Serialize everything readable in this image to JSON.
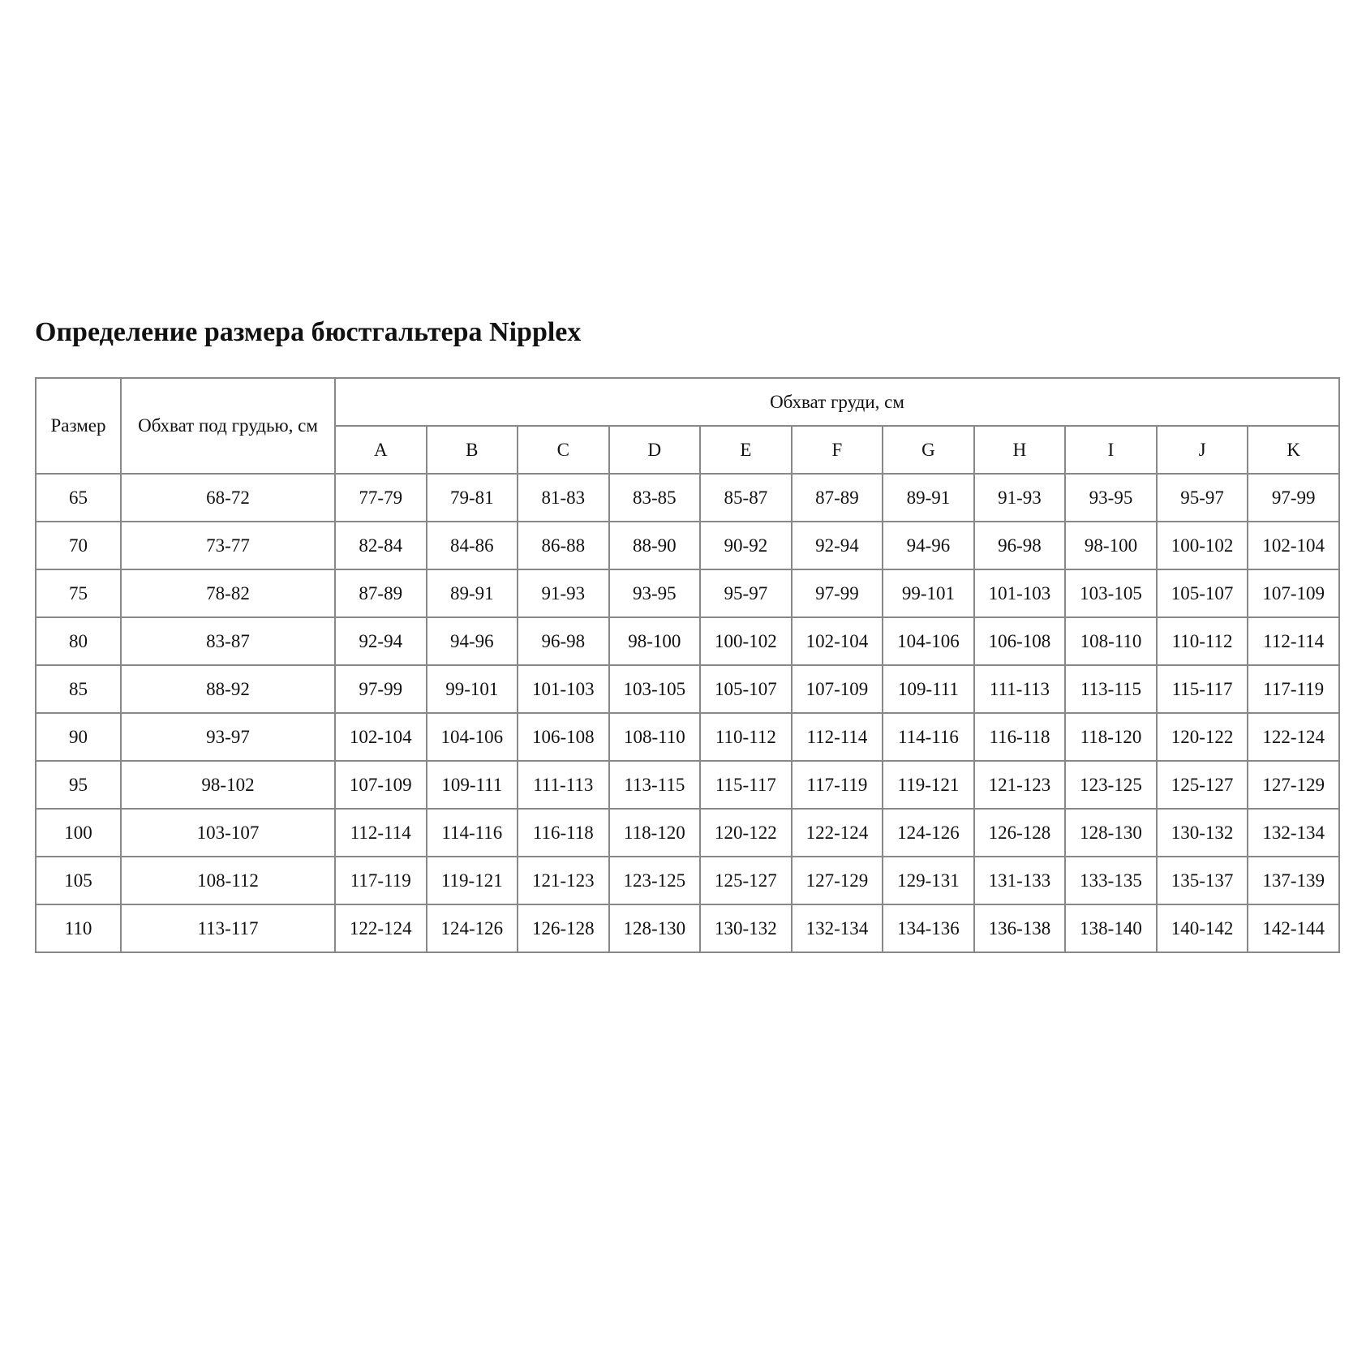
{
  "title": "Определение размера бюстгальтера Nipplex",
  "table": {
    "size_header": "Размер",
    "underbust_header": "Обхват под грудью, см",
    "bust_header": "Обхват груди, см",
    "cups": [
      "A",
      "B",
      "C",
      "D",
      "E",
      "F",
      "G",
      "H",
      "I",
      "J",
      "K"
    ],
    "rows": [
      {
        "size": "65",
        "underbust": "68-72",
        "bust": [
          "77-79",
          "79-81",
          "81-83",
          "83-85",
          "85-87",
          "87-89",
          "89-91",
          "91-93",
          "93-95",
          "95-97",
          "97-99"
        ]
      },
      {
        "size": "70",
        "underbust": "73-77",
        "bust": [
          "82-84",
          "84-86",
          "86-88",
          "88-90",
          "90-92",
          "92-94",
          "94-96",
          "96-98",
          "98-100",
          "100-102",
          "102-104"
        ]
      },
      {
        "size": "75",
        "underbust": "78-82",
        "bust": [
          "87-89",
          "89-91",
          "91-93",
          "93-95",
          "95-97",
          "97-99",
          "99-101",
          "101-103",
          "103-105",
          "105-107",
          "107-109"
        ]
      },
      {
        "size": "80",
        "underbust": "83-87",
        "bust": [
          "92-94",
          "94-96",
          "96-98",
          "98-100",
          "100-102",
          "102-104",
          "104-106",
          "106-108",
          "108-110",
          "110-112",
          "112-114"
        ]
      },
      {
        "size": "85",
        "underbust": "88-92",
        "bust": [
          "97-99",
          "99-101",
          "101-103",
          "103-105",
          "105-107",
          "107-109",
          "109-111",
          "111-113",
          "113-115",
          "115-117",
          "117-119"
        ]
      },
      {
        "size": "90",
        "underbust": "93-97",
        "bust": [
          "102-104",
          "104-106",
          "106-108",
          "108-110",
          "110-112",
          "112-114",
          "114-116",
          "116-118",
          "118-120",
          "120-122",
          "122-124"
        ]
      },
      {
        "size": "95",
        "underbust": "98-102",
        "bust": [
          "107-109",
          "109-111",
          "111-113",
          "113-115",
          "115-117",
          "117-119",
          "119-121",
          "121-123",
          "123-125",
          "125-127",
          "127-129"
        ]
      },
      {
        "size": "100",
        "underbust": "103-107",
        "bust": [
          "112-114",
          "114-116",
          "116-118",
          "118-120",
          "120-122",
          "122-124",
          "124-126",
          "126-128",
          "128-130",
          "130-132",
          "132-134"
        ]
      },
      {
        "size": "105",
        "underbust": "108-112",
        "bust": [
          "117-119",
          "119-121",
          "121-123",
          "123-125",
          "125-127",
          "127-129",
          "129-131",
          "131-133",
          "133-135",
          "135-137",
          "137-139"
        ]
      },
      {
        "size": "110",
        "underbust": "113-117",
        "bust": [
          "122-124",
          "124-126",
          "126-128",
          "128-130",
          "130-132",
          "132-134",
          "134-136",
          "136-138",
          "138-140",
          "140-142",
          "142-144"
        ]
      }
    ]
  }
}
